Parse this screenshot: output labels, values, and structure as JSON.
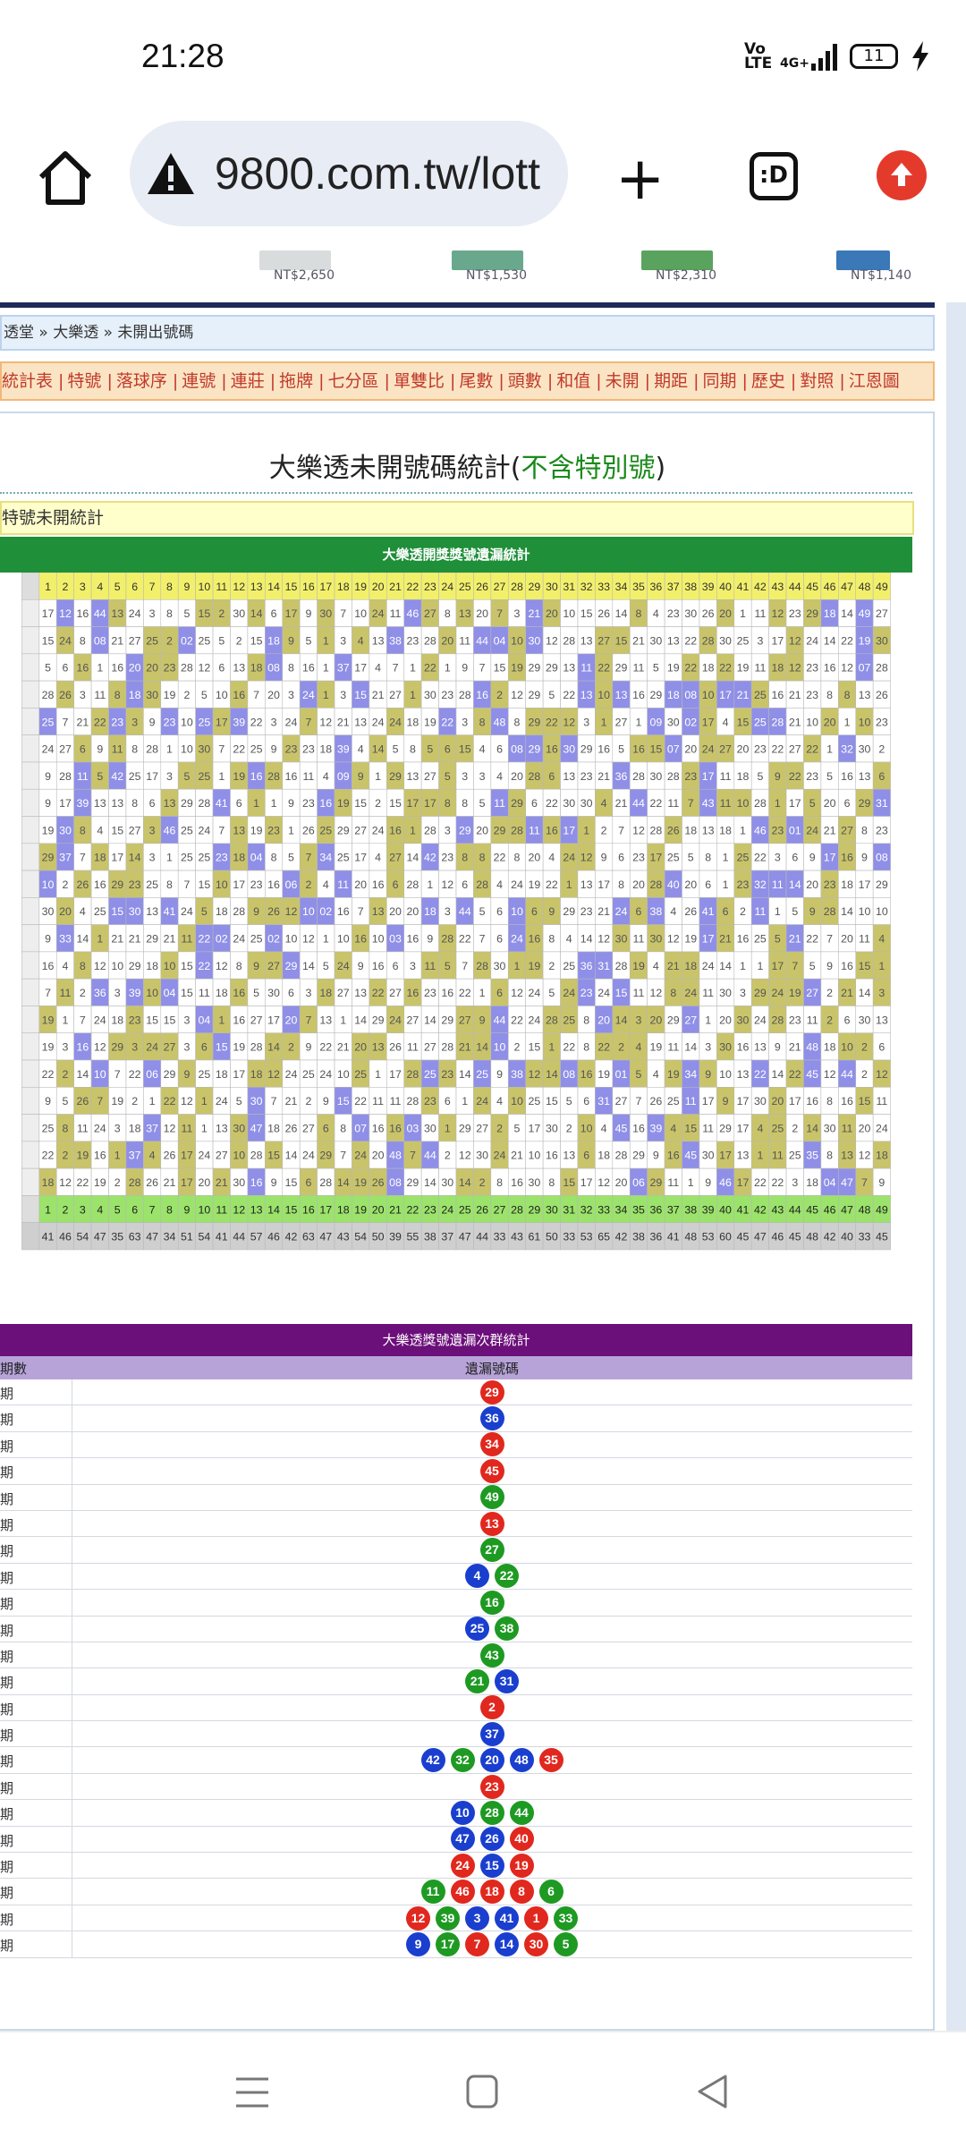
{
  "status": {
    "time": "21:28",
    "volte": "Vo LTE",
    "network": "4G+",
    "battery": "11"
  },
  "browser": {
    "url": "9800.com.tw/lott",
    "tab_label": ":D"
  },
  "ads": [
    {
      "price": "NT$2,650"
    },
    {
      "price": "NT$1,530"
    },
    {
      "price": "NT$2,310"
    },
    {
      "price": "NT$1,140"
    }
  ],
  "breadcrumb": "透堂 » 大樂透 » 未開出號碼",
  "menu": [
    "統計表",
    "特號",
    "落球序",
    "連號",
    "連莊",
    "拖牌",
    "七分區",
    "單雙比",
    "尾數",
    "頭數",
    "和值",
    "未開",
    "期距",
    "同期",
    "歷史",
    "對照",
    "江恩圖"
  ],
  "page_title": {
    "main": "大樂透未開號碼統計(",
    "highlight": "不含特別號",
    ")": ")"
  },
  "note": "特號未開統計",
  "grid": {
    "title": "大樂透開獎獎號遺漏統計",
    "numbers_row_top": "1..49",
    "footer_values": "41 46 54 47 35 63 47 34 51 54 41 44 57 46 42 63 47 43 54 50 39 55 38 37 47 44 33 43 61 50 33 53 65 42 38 36 41 48 53 60 45 47 46 45 48 42 40 33 45"
  },
  "table2": {
    "title": "大樂透獎號遺漏次群統計",
    "col1": "期數",
    "col2": "遺漏號碼",
    "rows": [
      {
        "label": "期",
        "balls": [
          {
            "n": "29",
            "c": "red"
          }
        ]
      },
      {
        "label": "期",
        "balls": [
          {
            "n": "36",
            "c": "blue"
          }
        ]
      },
      {
        "label": "期",
        "balls": [
          {
            "n": "34",
            "c": "red"
          }
        ]
      },
      {
        "label": "期",
        "balls": [
          {
            "n": "45",
            "c": "red"
          }
        ]
      },
      {
        "label": "期",
        "balls": [
          {
            "n": "49",
            "c": "green"
          }
        ]
      },
      {
        "label": "期",
        "balls": [
          {
            "n": "13",
            "c": "red"
          }
        ]
      },
      {
        "label": "期",
        "balls": [
          {
            "n": "27",
            "c": "green"
          }
        ]
      },
      {
        "label": "期",
        "balls": [
          {
            "n": "4",
            "c": "blue"
          },
          {
            "n": "22",
            "c": "green"
          }
        ]
      },
      {
        "label": "期",
        "balls": [
          {
            "n": "16",
            "c": "green"
          }
        ]
      },
      {
        "label": "期",
        "balls": [
          {
            "n": "25",
            "c": "blue"
          },
          {
            "n": "38",
            "c": "green"
          }
        ]
      },
      {
        "label": "期",
        "balls": [
          {
            "n": "43",
            "c": "green"
          }
        ]
      },
      {
        "label": "期",
        "balls": [
          {
            "n": "21",
            "c": "green"
          },
          {
            "n": "31",
            "c": "blue"
          }
        ]
      },
      {
        "label": "期",
        "balls": [
          {
            "n": "2",
            "c": "red"
          }
        ]
      },
      {
        "label": "期",
        "balls": [
          {
            "n": "37",
            "c": "blue"
          }
        ]
      },
      {
        "label": "期",
        "balls": [
          {
            "n": "42",
            "c": "blue"
          },
          {
            "n": "32",
            "c": "green"
          },
          {
            "n": "20",
            "c": "blue"
          },
          {
            "n": "48",
            "c": "blue"
          },
          {
            "n": "35",
            "c": "red"
          }
        ]
      },
      {
        "label": "期",
        "balls": [
          {
            "n": "23",
            "c": "red"
          }
        ]
      },
      {
        "label": "期",
        "balls": [
          {
            "n": "10",
            "c": "blue"
          },
          {
            "n": "28",
            "c": "green"
          },
          {
            "n": "44",
            "c": "green"
          }
        ]
      },
      {
        "label": "期",
        "balls": [
          {
            "n": "47",
            "c": "blue"
          },
          {
            "n": "26",
            "c": "blue"
          },
          {
            "n": "40",
            "c": "red"
          }
        ]
      },
      {
        "label": "期",
        "balls": [
          {
            "n": "24",
            "c": "red"
          },
          {
            "n": "15",
            "c": "blue"
          },
          {
            "n": "19",
            "c": "red"
          }
        ]
      },
      {
        "label": "期",
        "balls": [
          {
            "n": "11",
            "c": "green"
          },
          {
            "n": "46",
            "c": "red"
          },
          {
            "n": "18",
            "c": "red"
          },
          {
            "n": "8",
            "c": "red"
          },
          {
            "n": "6",
            "c": "green"
          }
        ]
      },
      {
        "label": "期",
        "balls": [
          {
            "n": "12",
            "c": "red"
          },
          {
            "n": "39",
            "c": "green"
          },
          {
            "n": "3",
            "c": "blue"
          },
          {
            "n": "41",
            "c": "blue"
          },
          {
            "n": "1",
            "c": "red"
          },
          {
            "n": "33",
            "c": "green"
          }
        ]
      },
      {
        "label": "期",
        "balls": [
          {
            "n": "9",
            "c": "blue"
          },
          {
            "n": "17",
            "c": "green"
          },
          {
            "n": "7",
            "c": "red"
          },
          {
            "n": "14",
            "c": "blue"
          },
          {
            "n": "30",
            "c": "red"
          },
          {
            "n": "5",
            "c": "green"
          }
        ]
      }
    ]
  },
  "colors": {
    "green_header": "#1f8f3a",
    "purple_header": "#6b0f7a",
    "ball_red": "#e1281e",
    "ball_blue": "#1a3fcf",
    "ball_green": "#1e9a23",
    "highlight_yellow": "#c9c46a",
    "highlight_purple": "#8f8fe8"
  }
}
